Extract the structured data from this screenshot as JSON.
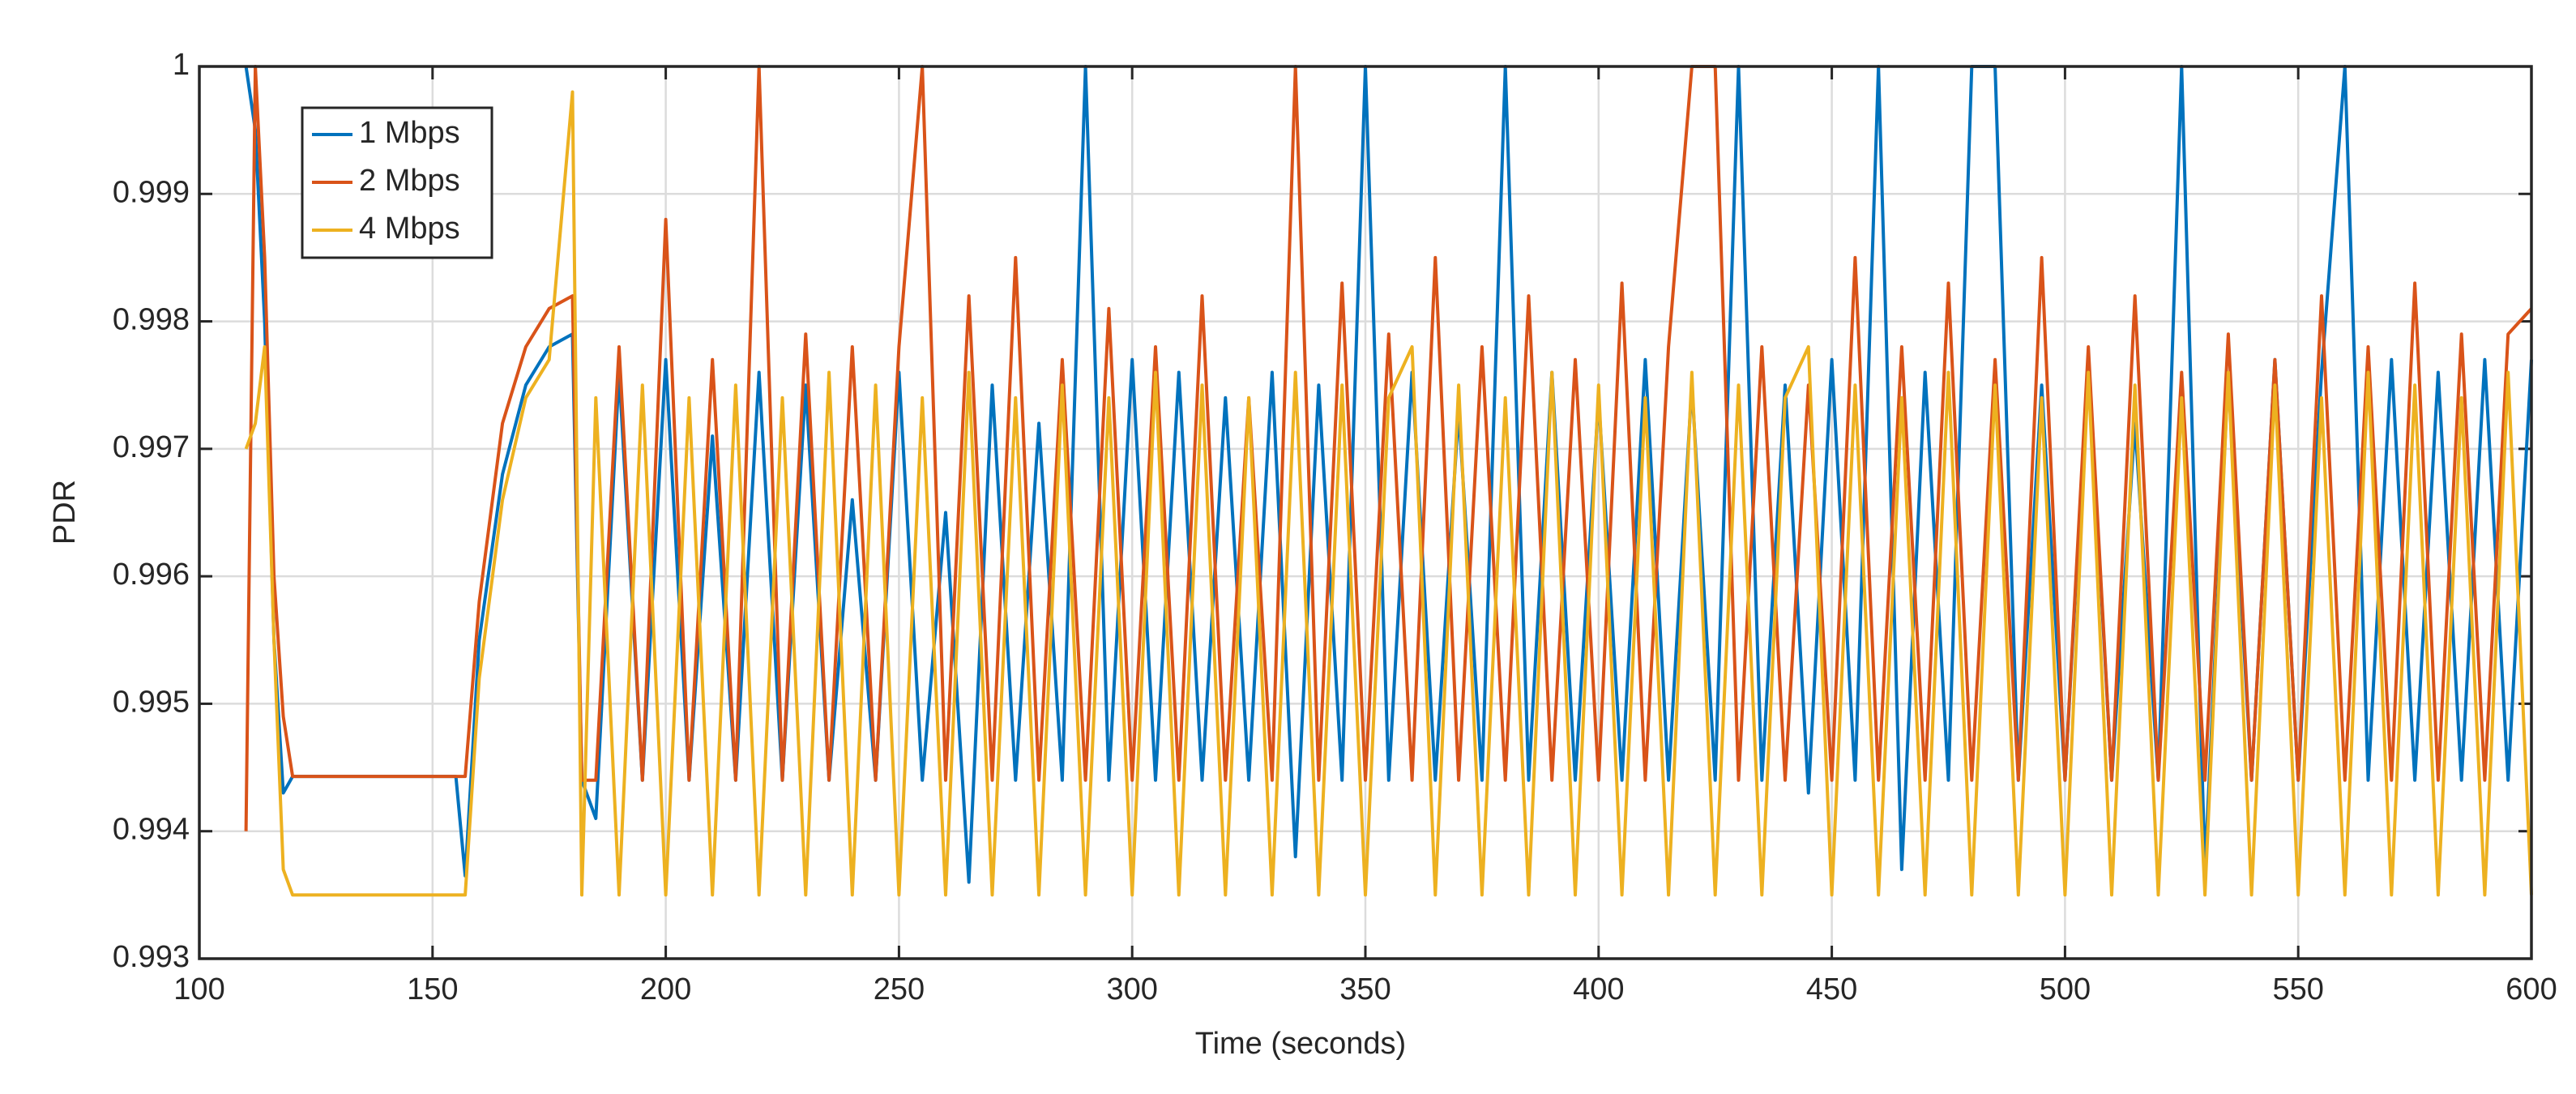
{
  "chart_data": {
    "type": "line",
    "xlabel": "Time (seconds)",
    "ylabel": "PDR",
    "x": [
      110,
      112,
      114,
      116,
      118,
      120,
      125,
      130,
      135,
      140,
      145,
      150,
      155,
      157,
      160,
      165,
      170,
      175,
      180,
      182,
      185,
      190,
      195,
      200,
      205,
      210,
      215,
      220,
      225,
      230,
      235,
      240,
      245,
      250,
      255,
      260,
      265,
      270,
      275,
      280,
      285,
      290,
      295,
      300,
      305,
      310,
      315,
      320,
      325,
      330,
      335,
      340,
      345,
      350,
      355,
      360,
      365,
      370,
      375,
      380,
      385,
      390,
      395,
      400,
      405,
      410,
      415,
      420,
      425,
      430,
      435,
      440,
      445,
      450,
      455,
      460,
      465,
      470,
      475,
      480,
      485,
      490,
      495,
      500,
      505,
      510,
      515,
      520,
      525,
      530,
      535,
      540,
      545,
      550,
      555,
      560,
      565,
      570,
      575,
      580,
      585,
      590,
      595,
      600
    ],
    "series": [
      {
        "name": "1 Mbps",
        "color": "#0072bd",
        "values": [
          1,
          0.9995,
          0.998,
          0.9955,
          0.9943,
          0.99443,
          0.99443,
          0.99443,
          0.99443,
          0.99443,
          0.99443,
          0.99443,
          0.99443,
          0.99365,
          0.9955,
          0.9968,
          0.9975,
          0.9978,
          0.9979,
          0.9944,
          0.9941,
          0.9976,
          0.9944,
          0.9977,
          0.9944,
          0.9971,
          0.9944,
          0.9976,
          0.9944,
          0.9975,
          0.9944,
          0.9966,
          0.9944,
          0.9976,
          0.9944,
          0.9965,
          0.9936,
          0.9975,
          0.9944,
          0.9972,
          0.9944,
          1,
          0.9944,
          0.9977,
          0.9944,
          0.9976,
          0.9944,
          0.9974,
          0.9944,
          0.9976,
          0.9938,
          0.9975,
          0.9944,
          1,
          0.9944,
          0.9976,
          0.9944,
          0.9973,
          0.9944,
          1,
          0.9944,
          0.9976,
          0.9944,
          0.9974,
          0.9944,
          0.9977,
          0.9944,
          0.9975,
          0.9944,
          1,
          0.9944,
          0.9975,
          0.9943,
          0.9977,
          0.9944,
          1,
          0.9937,
          0.9976,
          0.9944,
          1,
          1,
          0.9944,
          0.9975,
          0.9944,
          0.9977,
          0.9944,
          0.9972,
          0.9944,
          1,
          0.9937,
          0.9976,
          0.9944,
          0.9977,
          0.9944,
          0.9976,
          1,
          0.9944,
          0.9977,
          0.9944,
          0.9976,
          0.9944,
          0.9977,
          0.9944,
          0.9977
        ]
      },
      {
        "name": "2 Mbps",
        "color": "#d95319",
        "values": [
          0.994,
          1,
          0.9985,
          0.996,
          0.9949,
          0.99443,
          0.99443,
          0.99443,
          0.99443,
          0.99443,
          0.99443,
          0.99443,
          0.99443,
          0.99443,
          0.9958,
          0.9972,
          0.9978,
          0.9981,
          0.9982,
          0.9944,
          0.9944,
          0.9978,
          0.9944,
          0.9988,
          0.9944,
          0.9977,
          0.9944,
          1,
          0.9944,
          0.9979,
          0.9944,
          0.9978,
          0.9944,
          0.9978,
          1,
          0.9944,
          0.9982,
          0.9944,
          0.9985,
          0.9944,
          0.9977,
          0.9944,
          0.9981,
          0.9944,
          0.9978,
          0.9944,
          0.9982,
          0.9944,
          0.9974,
          0.9944,
          1,
          0.9944,
          0.9983,
          0.9944,
          0.9979,
          0.9944,
          0.9985,
          0.9944,
          0.9978,
          0.9944,
          0.9982,
          0.9944,
          0.9977,
          0.9944,
          0.9983,
          0.9944,
          0.9978,
          1,
          1,
          0.9944,
          0.9978,
          0.9944,
          0.9975,
          0.9944,
          0.9985,
          0.9944,
          0.9978,
          0.9944,
          0.9983,
          0.9944,
          0.9977,
          0.9944,
          0.9985,
          0.9944,
          0.9978,
          0.9944,
          0.9982,
          0.9944,
          0.9976,
          0.9944,
          0.9979,
          0.9944,
          0.9977,
          0.9944,
          0.9982,
          0.9944,
          0.9978,
          0.9944,
          0.9983,
          0.9944,
          0.9979,
          0.9944,
          0.9979,
          0.9981
        ]
      },
      {
        "name": "4 Mbps",
        "color": "#edb120",
        "values": [
          0.997,
          0.9972,
          0.9978,
          0.9955,
          0.9937,
          0.9935,
          0.9935,
          0.9935,
          0.9935,
          0.9935,
          0.9935,
          0.9935,
          0.9935,
          0.9935,
          0.9952,
          0.9966,
          0.9974,
          0.9977,
          0.9998,
          0.9935,
          0.9974,
          0.9935,
          0.9975,
          0.9935,
          0.9974,
          0.9935,
          0.9975,
          0.9935,
          0.9974,
          0.9935,
          0.9976,
          0.9935,
          0.9975,
          0.9935,
          0.9974,
          0.9935,
          0.9976,
          0.9935,
          0.9974,
          0.9935,
          0.9975,
          0.9935,
          0.9974,
          0.9935,
          0.9976,
          0.9935,
          0.9975,
          0.9935,
          0.9974,
          0.9935,
          0.9976,
          0.9935,
          0.9975,
          0.9935,
          0.9974,
          0.9978,
          0.9935,
          0.9975,
          0.9935,
          0.9974,
          0.9935,
          0.9976,
          0.9935,
          0.9975,
          0.9935,
          0.9974,
          0.9935,
          0.9976,
          0.9935,
          0.9975,
          0.9935,
          0.9974,
          0.9978,
          0.9935,
          0.9975,
          0.9935,
          0.9974,
          0.9935,
          0.9976,
          0.9935,
          0.9975,
          0.9935,
          0.9974,
          0.9935,
          0.9976,
          0.9935,
          0.9975,
          0.9935,
          0.9974,
          0.9935,
          0.9976,
          0.9935,
          0.9975,
          0.9935,
          0.9974,
          0.9935,
          0.9976,
          0.9935,
          0.9975,
          0.9935,
          0.9974,
          0.9935,
          0.9976,
          0.9935
        ]
      }
    ],
    "xlim": [
      100,
      600
    ],
    "xticks": [
      100,
      150,
      200,
      250,
      300,
      350,
      400,
      450,
      500,
      550,
      600
    ],
    "ylim": [
      0.993,
      1
    ],
    "yticks": [
      0.993,
      0.994,
      0.995,
      0.996,
      0.997,
      0.998,
      0.999,
      1
    ],
    "grid": true,
    "legend": "top-left"
  }
}
